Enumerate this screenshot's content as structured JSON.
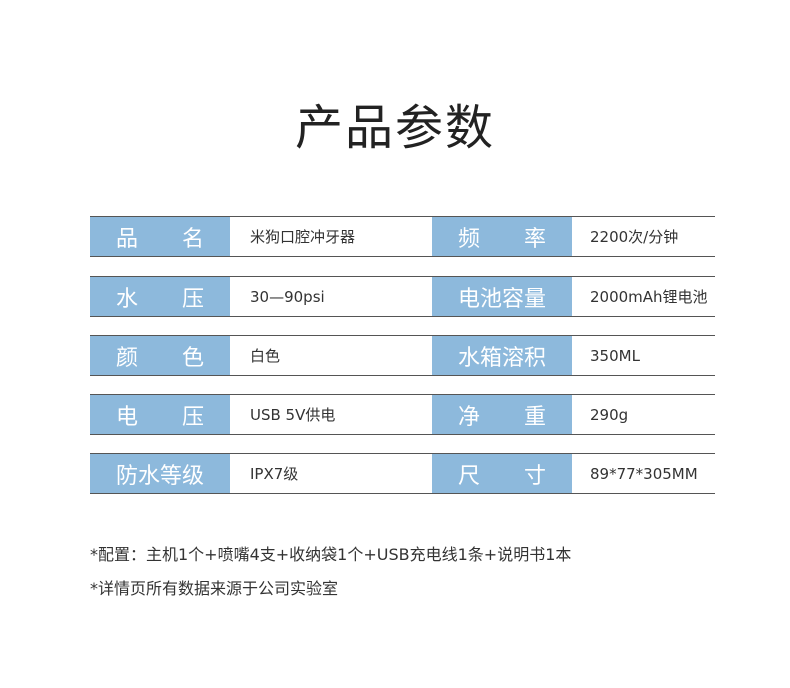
{
  "title": "产品参数",
  "rows": [
    {
      "label1": "品　　名",
      "value1": "米狗口腔冲牙器",
      "label2": "频　　率",
      "value2": "2200次/分钟"
    },
    {
      "label1": "水　　压",
      "value1": "30—90psi",
      "label2": "电池容量",
      "value2": "2000mAh锂电池"
    },
    {
      "label1": "颜　　色",
      "value1": "白色",
      "label2": "水箱溶积",
      "value2": "350ML"
    },
    {
      "label1": "电　　压",
      "value1": "USB 5V供电",
      "label2": "净　　重",
      "value2": "290g"
    },
    {
      "label1": "防水等级",
      "value1": "IPX7级",
      "label2": "尺　　寸",
      "value2": "89*77*305MM"
    }
  ],
  "notes": [
    "*配置：主机1个+喷嘴4支+收纳袋1个+USB充电线1条+说明书1本",
    "*详情页所有数据来源于公司实验室"
  ],
  "colors": {
    "label_bg": "#8db9dc",
    "label_text": "#ffffff"
  }
}
